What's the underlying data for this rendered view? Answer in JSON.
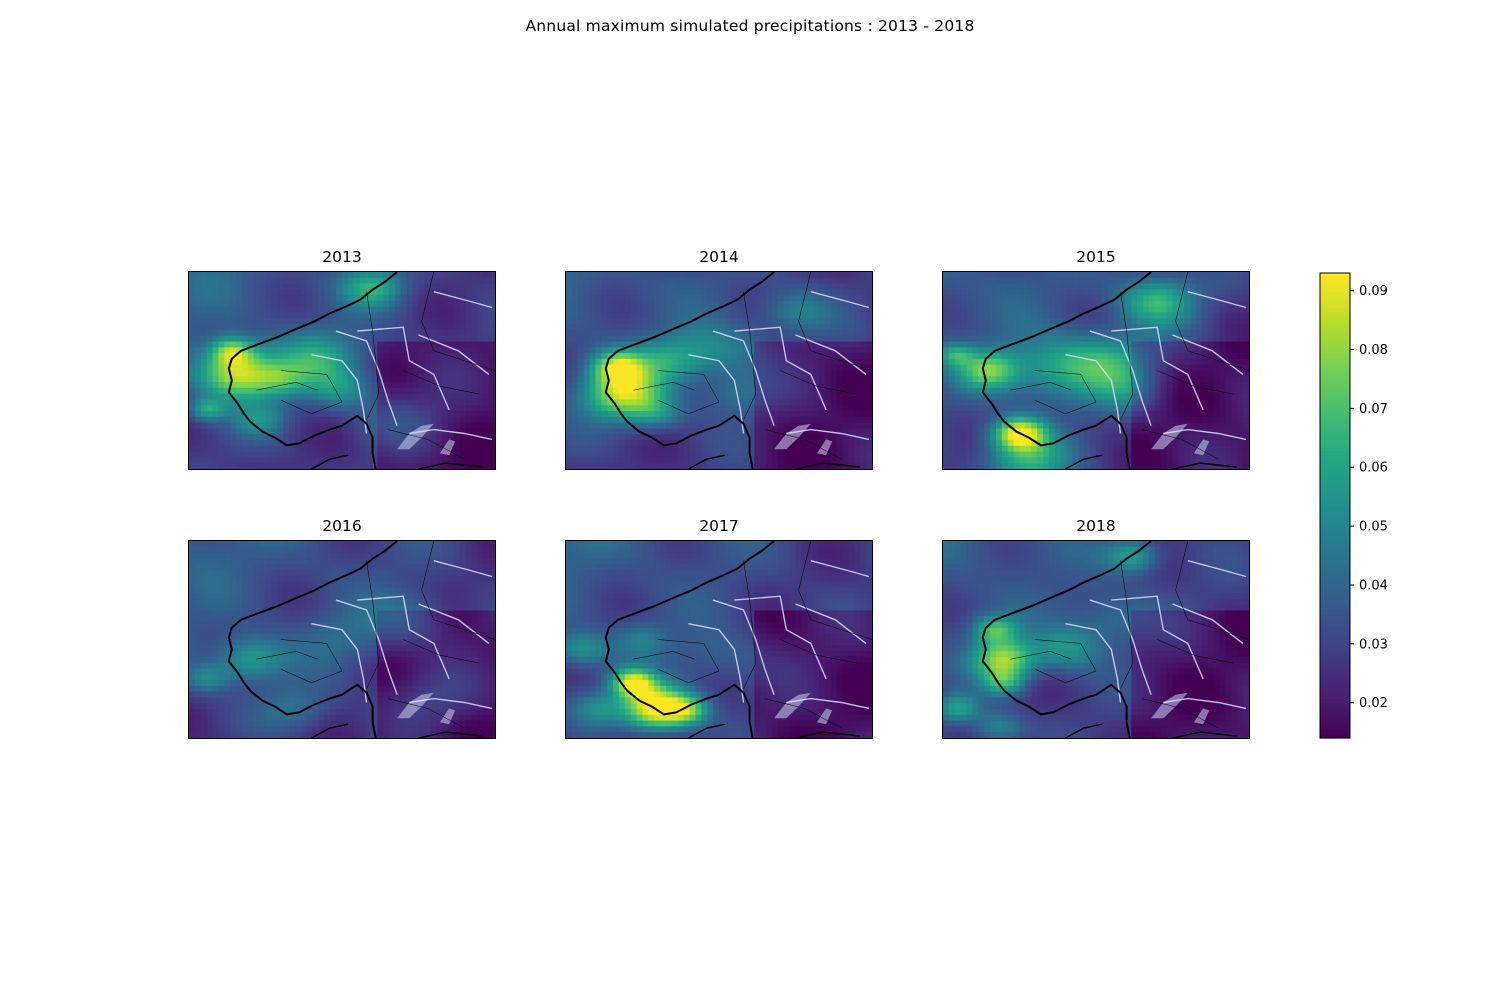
{
  "figure_title": "Annual maximum simulated precipitations : 2013 - 2018",
  "colormap": "viridis",
  "colorbar": {
    "min": 0.014,
    "max": 0.093,
    "ticks": [
      "0.02",
      "0.03",
      "0.04",
      "0.05",
      "0.06",
      "0.07",
      "0.08",
      "0.09"
    ]
  },
  "panels": [
    {
      "title": "2013",
      "hotspots": [
        [
          0.16,
          0.52,
          0.09,
          0.058
        ],
        [
          0.14,
          0.4,
          0.05,
          0.038
        ],
        [
          0.42,
          0.45,
          0.1,
          0.03
        ],
        [
          0.6,
          0.08,
          0.07,
          0.03
        ],
        [
          0.3,
          0.55,
          0.06,
          0.02
        ],
        [
          0.06,
          0.7,
          0.04,
          0.03
        ],
        [
          0.7,
          0.75,
          0.1,
          0.012
        ],
        [
          0.23,
          0.75,
          0.06,
          0.02
        ],
        [
          0.5,
          0.6,
          0.07,
          0.02
        ]
      ]
    },
    {
      "title": "2014",
      "hotspots": [
        [
          0.19,
          0.62,
          0.09,
          0.055
        ],
        [
          0.17,
          0.48,
          0.06,
          0.045
        ],
        [
          0.34,
          0.45,
          0.08,
          0.025
        ],
        [
          0.5,
          0.4,
          0.1,
          0.02
        ],
        [
          0.75,
          0.2,
          0.08,
          0.02
        ],
        [
          0.3,
          0.72,
          0.06,
          0.02
        ],
        [
          0.55,
          0.62,
          0.08,
          0.015
        ]
      ]
    },
    {
      "title": "2015",
      "hotspots": [
        [
          0.25,
          0.82,
          0.06,
          0.06
        ],
        [
          0.15,
          0.5,
          0.07,
          0.04
        ],
        [
          0.27,
          0.96,
          0.1,
          0.035
        ],
        [
          0.7,
          0.15,
          0.09,
          0.035
        ],
        [
          0.38,
          0.5,
          0.12,
          0.03
        ],
        [
          0.55,
          0.45,
          0.1,
          0.025
        ],
        [
          0.04,
          0.42,
          0.04,
          0.025
        ],
        [
          0.6,
          0.6,
          0.08,
          0.015
        ]
      ]
    },
    {
      "title": "2016",
      "hotspots": [
        [
          0.2,
          0.6,
          0.08,
          0.03
        ],
        [
          0.06,
          0.7,
          0.05,
          0.02
        ],
        [
          0.5,
          0.5,
          0.1,
          0.01
        ],
        [
          0.72,
          0.4,
          0.1,
          0.015
        ],
        [
          0.35,
          0.85,
          0.08,
          0.015
        ],
        [
          0.78,
          0.8,
          0.1,
          0.01
        ]
      ]
    },
    {
      "title": "2017",
      "hotspots": [
        [
          0.3,
          0.85,
          0.08,
          0.072
        ],
        [
          0.22,
          0.72,
          0.05,
          0.055
        ],
        [
          0.4,
          0.86,
          0.05,
          0.03
        ],
        [
          0.05,
          0.55,
          0.06,
          0.025
        ],
        [
          0.1,
          0.85,
          0.06,
          0.02
        ],
        [
          0.5,
          0.6,
          0.1,
          0.012
        ],
        [
          0.25,
          0.5,
          0.06,
          0.015
        ]
      ]
    },
    {
      "title": "2018",
      "hotspots": [
        [
          0.2,
          0.6,
          0.07,
          0.05
        ],
        [
          0.2,
          0.72,
          0.05,
          0.03
        ],
        [
          0.17,
          0.45,
          0.05,
          0.035
        ],
        [
          0.05,
          0.85,
          0.05,
          0.03
        ],
        [
          0.18,
          0.95,
          0.06,
          0.025
        ],
        [
          0.4,
          0.55,
          0.08,
          0.025
        ],
        [
          0.62,
          0.08,
          0.06,
          0.03
        ],
        [
          0.55,
          0.4,
          0.1,
          0.015
        ]
      ]
    }
  ]
}
